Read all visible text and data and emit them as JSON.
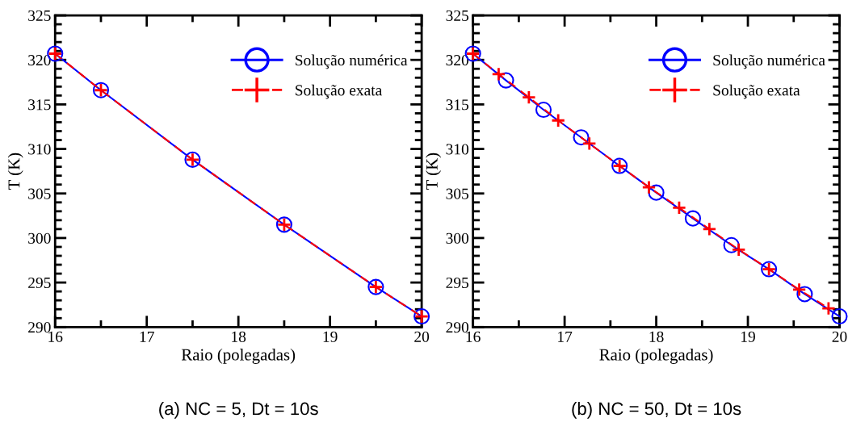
{
  "chart_data": [
    {
      "type": "line",
      "title": "(a) NC = 5, Dt = 10s",
      "xlabel": "Raio (polegadas)",
      "ylabel": "T (K)",
      "xlim": [
        16,
        20
      ],
      "xticks": [
        16,
        17,
        18,
        19,
        20
      ],
      "ylim": [
        290,
        325
      ],
      "yticks": [
        290,
        295,
        300,
        305,
        310,
        315,
        320,
        325
      ],
      "grid": false,
      "legend": "top right",
      "series": [
        {
          "name": "Solução numérica",
          "color": "#0000ff",
          "marker": "circle",
          "line_style": "solid",
          "x": [
            16,
            16.5,
            17.5,
            18.5,
            19.5,
            20
          ],
          "values": [
            320.7,
            316.6,
            308.8,
            301.5,
            294.5,
            291.2
          ]
        },
        {
          "name": "Solução exata",
          "color": "#ff0000",
          "marker": "cross",
          "line_style": "dashed",
          "x": [
            16,
            16.5,
            17.5,
            18.5,
            19.5,
            20
          ],
          "values": [
            320.7,
            316.6,
            308.8,
            301.5,
            294.5,
            291.2
          ]
        }
      ]
    },
    {
      "type": "line",
      "title": "(b) NC = 50, Dt = 10s",
      "xlabel": "Raio (polegadas)",
      "ylabel": "T (K)",
      "xlim": [
        16,
        20
      ],
      "xticks": [
        16,
        17,
        18,
        19,
        20
      ],
      "ylim": [
        290,
        325
      ],
      "yticks": [
        290,
        295,
        300,
        305,
        310,
        315,
        320,
        325
      ],
      "grid": false,
      "legend": "top right",
      "series": [
        {
          "name": "Solução numérica",
          "color": "#0000ff",
          "marker": "circle",
          "line_style": "solid",
          "x": [
            16,
            16.36,
            16.77,
            17.18,
            17.6,
            18.0,
            18.4,
            18.82,
            19.23,
            19.62,
            20
          ],
          "values": [
            320.7,
            317.7,
            314.4,
            311.3,
            308.1,
            305.1,
            302.2,
            299.2,
            296.5,
            293.7,
            291.2
          ]
        },
        {
          "name": "Solução exata",
          "color": "#ff0000",
          "marker": "cross",
          "line_style": "dashed",
          "x": [
            16,
            16.28,
            16.61,
            16.93,
            17.27,
            17.6,
            17.92,
            18.25,
            18.58,
            18.9,
            19.23,
            19.56,
            19.88
          ],
          "values": [
            320.7,
            318.4,
            315.8,
            313.2,
            310.6,
            308.1,
            305.7,
            303.4,
            301.0,
            298.7,
            296.5,
            294.2,
            292.1
          ]
        }
      ]
    }
  ]
}
